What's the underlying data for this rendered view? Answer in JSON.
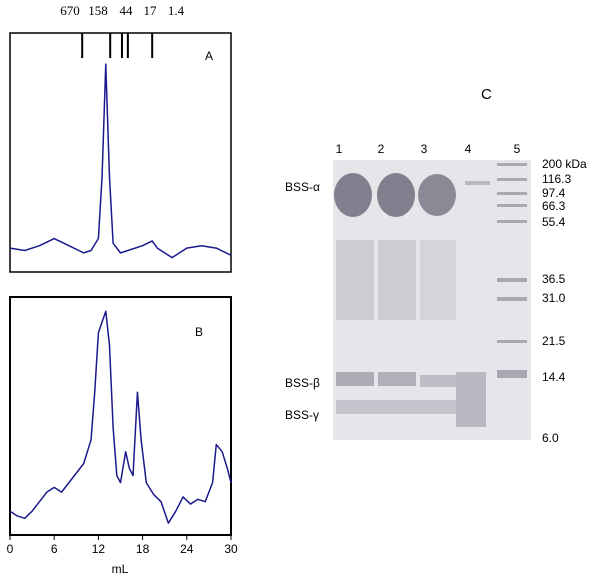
{
  "panel_a": {
    "label": "A",
    "markers": {
      "labels": [
        "670",
        "158",
        "44",
        "17",
        "1.4"
      ],
      "positions": [
        9.8,
        13.6,
        15.2,
        16.0,
        19.3
      ]
    },
    "trace": {
      "x": [
        0,
        2,
        4,
        6,
        8,
        10,
        11,
        12,
        12.5,
        13,
        13.5,
        14,
        15,
        16,
        18,
        19.3,
        20,
        22,
        23,
        24,
        26,
        28,
        30
      ],
      "y": [
        10,
        9,
        11,
        14,
        11,
        8,
        9,
        14,
        40,
        87,
        40,
        12,
        8,
        9,
        11,
        13,
        10,
        6,
        8,
        10,
        11,
        10,
        7
      ]
    }
  },
  "panel_b": {
    "label": "B",
    "trace": {
      "x": [
        0,
        1,
        2,
        3,
        4,
        5,
        6,
        7,
        8,
        9,
        10,
        11,
        11.5,
        12,
        13,
        13.5,
        14,
        14.5,
        15,
        15.7,
        16.2,
        16.7,
        17.3,
        17.8,
        18.5,
        19.5,
        20.5,
        21.5,
        22.5,
        23.5,
        24.5,
        25.5,
        26.5,
        27.5,
        28,
        28.8,
        29.5,
        30
      ],
      "y": [
        10,
        8,
        7,
        10,
        14,
        18,
        20,
        18,
        22,
        26,
        30,
        40,
        60,
        85,
        94,
        80,
        45,
        25,
        22,
        35,
        28,
        25,
        60,
        40,
        22,
        17,
        14,
        5,
        10,
        16,
        13,
        15,
        14,
        22,
        38,
        35,
        28,
        22
      ]
    }
  },
  "x_axis": {
    "label": "mL",
    "xlim": [
      0,
      30
    ],
    "xticks": [
      0,
      6,
      12,
      18,
      24,
      30
    ]
  },
  "trace_ylim": [
    0,
    100
  ],
  "panel_c": {
    "label": "C",
    "lanes": [
      "1",
      "2",
      "3",
      "4",
      "5"
    ],
    "bands": [
      "BSS-α",
      "BSS-β",
      "BSS-γ"
    ],
    "markers": [
      "200 kDa",
      "116.3",
      "97.4",
      "66.3",
      "55.4",
      "36.5",
      "31.0",
      "21.5",
      "14.4",
      "6.0"
    ]
  }
}
